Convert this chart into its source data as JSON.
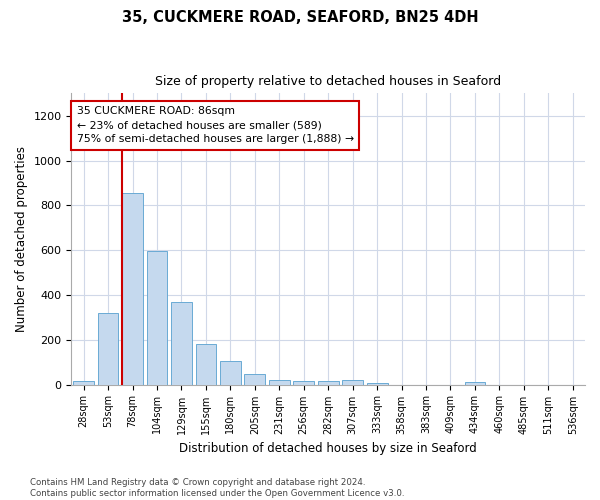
{
  "title": "35, CUCKMERE ROAD, SEAFORD, BN25 4DH",
  "subtitle": "Size of property relative to detached houses in Seaford",
  "xlabel": "Distribution of detached houses by size in Seaford",
  "ylabel": "Number of detached properties",
  "bar_color": "#c5d9ee",
  "bar_edgecolor": "#6aaad4",
  "categories": [
    "28sqm",
    "53sqm",
    "78sqm",
    "104sqm",
    "129sqm",
    "155sqm",
    "180sqm",
    "205sqm",
    "231sqm",
    "256sqm",
    "282sqm",
    "307sqm",
    "333sqm",
    "358sqm",
    "383sqm",
    "409sqm",
    "434sqm",
    "460sqm",
    "485sqm",
    "511sqm",
    "536sqm"
  ],
  "values": [
    18,
    318,
    855,
    597,
    370,
    183,
    105,
    48,
    22,
    18,
    18,
    22,
    8,
    0,
    0,
    0,
    12,
    0,
    0,
    0,
    0
  ],
  "ylim": [
    0,
    1300
  ],
  "yticks": [
    0,
    200,
    400,
    600,
    800,
    1000,
    1200
  ],
  "vline_color": "#cc0000",
  "annotation_text": "35 CUCKMERE ROAD: 86sqm\n← 23% of detached houses are smaller (589)\n75% of semi-detached houses are larger (1,888) →",
  "annotation_box_color": "#ffffff",
  "annotation_box_edgecolor": "#cc0000",
  "footer_text": "Contains HM Land Registry data © Crown copyright and database right 2024.\nContains public sector information licensed under the Open Government Licence v3.0.",
  "background_color": "#ffffff",
  "grid_color": "#d0d8e8",
  "fig_width": 6.0,
  "fig_height": 5.0
}
